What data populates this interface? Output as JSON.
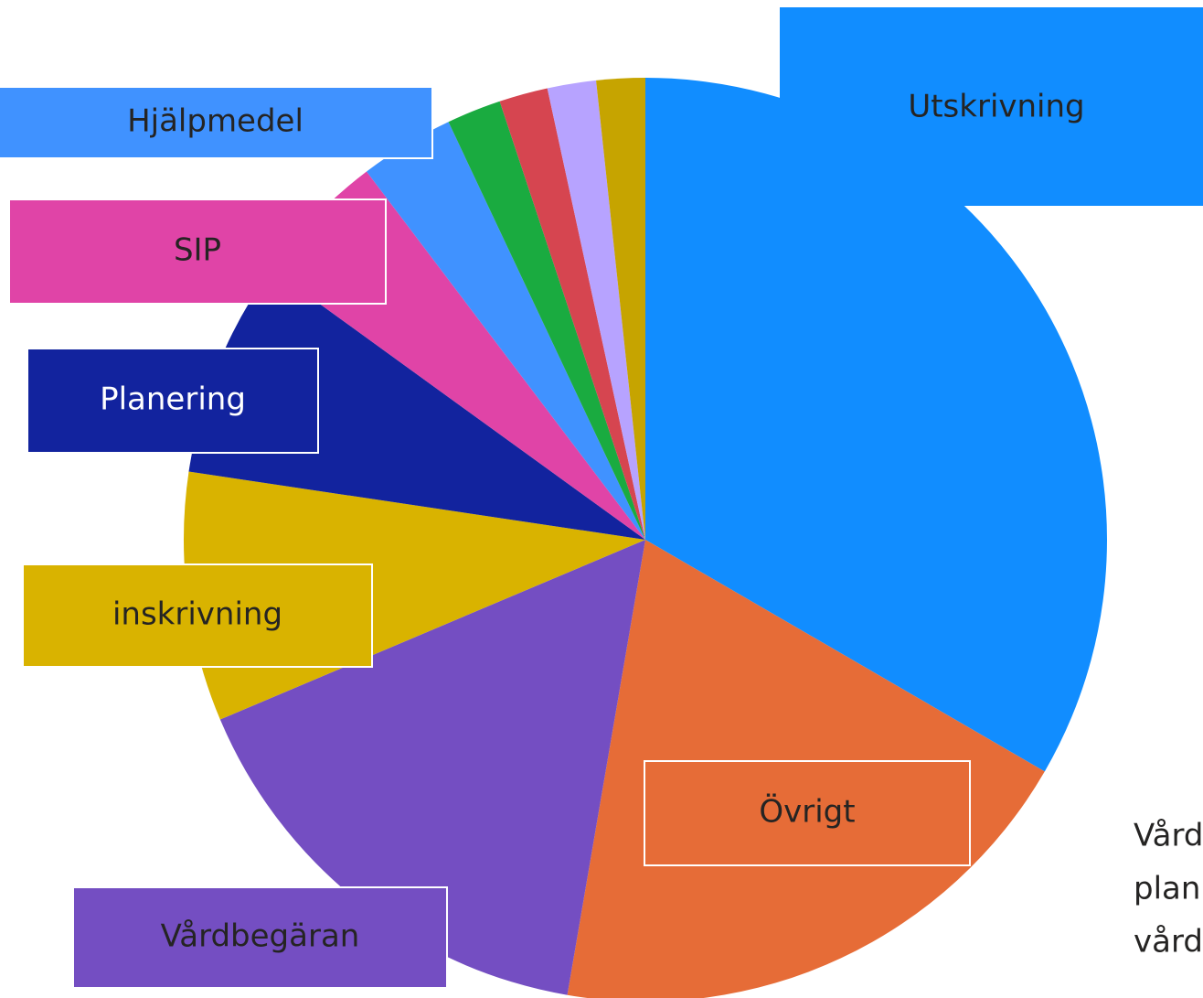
{
  "chart_data": {
    "type": "pie",
    "categories": [
      "Utskrivning",
      "Övrigt",
      "Vårdbegäran",
      "inskrivning",
      "Planering",
      "SIP",
      "Hjälpmedel",
      null,
      null,
      null,
      null
    ],
    "values": [
      33.3,
      19.3,
      15.9,
      8.7,
      7.6,
      4.7,
      3.3,
      1.9,
      1.7,
      1.7,
      1.7
    ],
    "colors": [
      "#118dff",
      "#e66c37",
      "#744ec2",
      "#d9b300",
      "#12239e",
      "#e044a7",
      "#4092ff",
      "#1aab40",
      "#d64550",
      "#b7a3ff",
      "#c6a400"
    ],
    "annotation_lines": [
      "Vård",
      "plan",
      "vård"
    ]
  }
}
